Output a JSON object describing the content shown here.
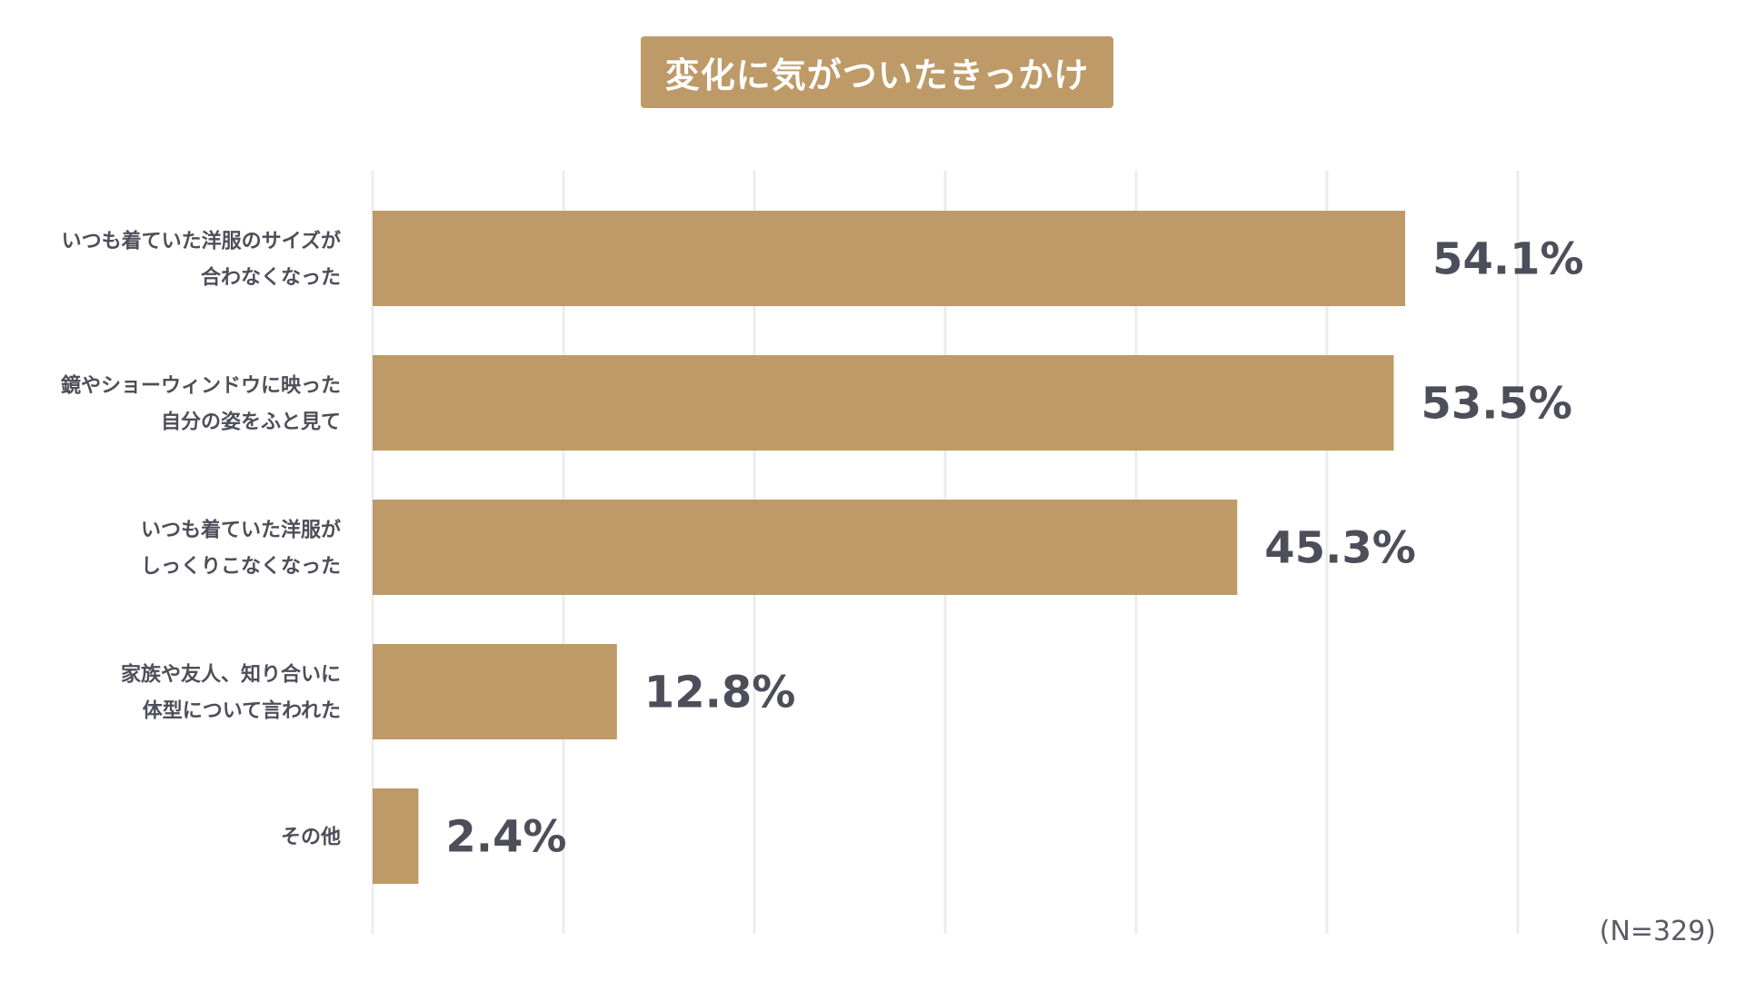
{
  "colors": {
    "bar": "#bd9a67",
    "title_bg": "#bd9a67",
    "grid": "#ececec",
    "text": "#4e4e5a"
  },
  "chart_data": {
    "type": "bar",
    "orientation": "horizontal",
    "title": "変化に気がついたきっかけ",
    "categories": [
      [
        "いつも着ていた洋服のサイズが",
        "合わなくなった"
      ],
      [
        "鏡やショーウィンドウに映った",
        "自分の姿をふと見て"
      ],
      [
        "いつも着ていた洋服が",
        "しっくりこなくなった"
      ],
      [
        "家族や友人、知り合いに",
        "体型について言われた"
      ],
      [
        "その他"
      ]
    ],
    "values": [
      54.1,
      53.5,
      45.3,
      12.8,
      2.4
    ],
    "value_labels": [
      "54.1%",
      "53.5%",
      "45.3%",
      "12.8%",
      "2.4%"
    ],
    "xlim": [
      0,
      60
    ],
    "grid": true,
    "sample_note": "(N=329)"
  }
}
